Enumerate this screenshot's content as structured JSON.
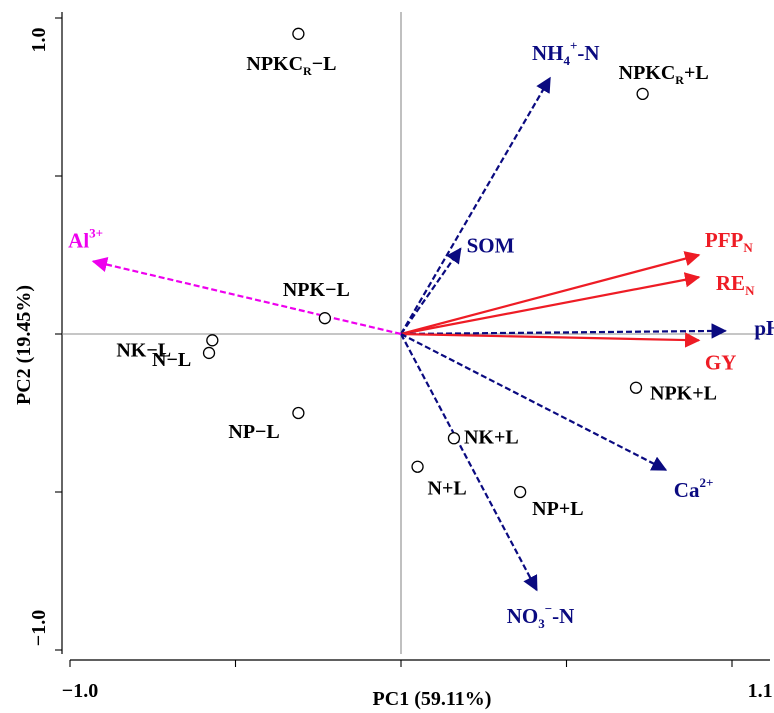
{
  "chart_data": {
    "type": "scatter",
    "subtype": "pca-biplot",
    "xlabel": "PC1 (59.11%)",
    "ylabel": "PC2 (19.45%)",
    "xlim": [
      -1.0,
      1.1
    ],
    "ylim": [
      -1.0,
      1.0
    ],
    "x_tick_labels": [
      {
        "value": -1.0,
        "label": "−1.0"
      },
      {
        "value": 1.1,
        "label": "1.1"
      }
    ],
    "y_tick_labels": [
      {
        "value": 1.0,
        "label": "1.0"
      },
      {
        "value": -1.0,
        "label": "−1.0"
      }
    ],
    "x_minor_ticks": [
      -1.0,
      -0.5,
      0.0,
      0.5,
      1.0
    ],
    "y_minor_ticks": [
      1.0,
      0.5,
      0.0,
      -0.5,
      -1.0
    ],
    "grid": false,
    "zero_lines": true,
    "point_style": "open circle",
    "samples": [
      {
        "name": "NPKC_R−L",
        "label": {
          "main": "NPKC",
          "sub": "R",
          "tail": "−L"
        },
        "x": -0.31,
        "y": 0.95
      },
      {
        "name": "NPKC_R+L",
        "label": {
          "main": "NPKC",
          "sub": "R",
          "tail": "+L"
        },
        "x": 0.73,
        "y": 0.76
      },
      {
        "name": "NPK−L",
        "label": {
          "main": "NPK−L"
        },
        "x": -0.23,
        "y": 0.05
      },
      {
        "name": "NK−L",
        "label": {
          "main": "NK−L"
        },
        "x": -0.57,
        "y": -0.02
      },
      {
        "name": "N−L",
        "label": {
          "main": "N−L"
        },
        "x": -0.58,
        "y": -0.06
      },
      {
        "name": "NP−L",
        "label": {
          "main": "NP−L"
        },
        "x": -0.31,
        "y": -0.25
      },
      {
        "name": "NPK+L",
        "label": {
          "main": "NPK+L"
        },
        "x": 0.71,
        "y": -0.17
      },
      {
        "name": "NK+L",
        "label": {
          "main": "NK+L"
        },
        "x": 0.16,
        "y": -0.33
      },
      {
        "name": "N+L",
        "label": {
          "main": "N+L"
        },
        "x": 0.05,
        "y": -0.42
      },
      {
        "name": "NP+L",
        "label": {
          "main": "NP+L"
        },
        "x": 0.36,
        "y": -0.5
      }
    ],
    "vectors": [
      {
        "name": "NH4+-N",
        "label": {
          "main": "NH",
          "sub": "4",
          "sup": "+",
          "tail": "-N"
        },
        "x": 0.45,
        "y": 0.81,
        "color": "#0a0a80",
        "style": "dashed"
      },
      {
        "name": "SOM",
        "label": {
          "main": "SOM"
        },
        "x": 0.18,
        "y": 0.27,
        "color": "#0a0a80",
        "style": "dashed"
      },
      {
        "name": "PFP_N",
        "label": {
          "main": "PFP",
          "sub": "N"
        },
        "x": 0.9,
        "y": 0.25,
        "color": "#ee1c25",
        "style": "solid"
      },
      {
        "name": "RE_N",
        "label": {
          "main": "RE",
          "sub": "N"
        },
        "x": 0.9,
        "y": 0.18,
        "color": "#ee1c25",
        "style": "solid"
      },
      {
        "name": "pH",
        "label": {
          "main": "pH"
        },
        "x": 0.98,
        "y": 0.01,
        "color": "#0a0a80",
        "style": "dashed"
      },
      {
        "name": "GY",
        "label": {
          "main": "GY"
        },
        "x": 0.9,
        "y": -0.02,
        "color": "#ee1c25",
        "style": "solid"
      },
      {
        "name": "Ca2+",
        "label": {
          "main": "Ca",
          "sup": "2+"
        },
        "x": 0.8,
        "y": -0.43,
        "color": "#0a0a80",
        "style": "dashed"
      },
      {
        "name": "NO3--N",
        "label": {
          "main": "NO",
          "sub": "3",
          "sup": "−",
          "tail": "-N"
        },
        "x": 0.41,
        "y": -0.81,
        "color": "#0a0a80",
        "style": "dashed"
      },
      {
        "name": "Al3+",
        "label": {
          "main": "Al",
          "sup": "3+"
        },
        "x": -0.93,
        "y": 0.23,
        "color": "#ee00ee",
        "style": "dashed"
      }
    ]
  }
}
